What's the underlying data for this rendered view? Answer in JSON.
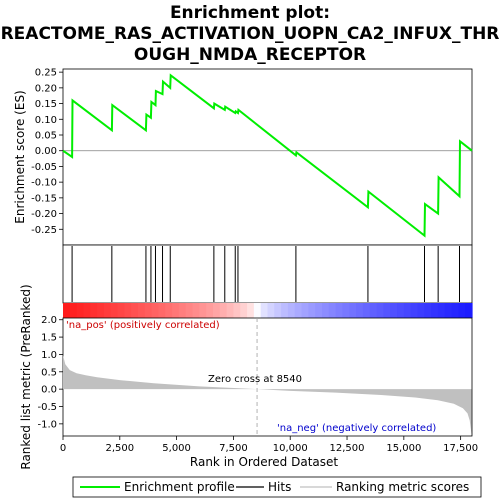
{
  "chart_data": {
    "type": "line",
    "title_lines": [
      "Enrichment plot:",
      "REACTOME_RAS_ACTIVATION_UOPN_CA2_INFUX_THR",
      "OUGH_NMDA_RECEPTOR"
    ],
    "top_panel": {
      "ylabel": "Enrichment score (ES)",
      "ylim": [
        -0.3,
        0.26
      ],
      "yticks": [
        "0.25",
        "0.20",
        "0.15",
        "0.10",
        "0.05",
        "0.00",
        "-0.05",
        "-0.10",
        "-0.15",
        "-0.20",
        "-0.25"
      ],
      "ytick_values": [
        0.25,
        0.2,
        0.15,
        0.1,
        0.05,
        0.0,
        -0.05,
        -0.1,
        -0.15,
        -0.2,
        -0.25
      ],
      "series": [
        {
          "name": "Enrichment profile",
          "color": "#00ee00",
          "x": [
            0,
            400,
            420,
            2150,
            2170,
            3650,
            3670,
            3870,
            3890,
            4070,
            4090,
            4380,
            4400,
            4720,
            4740,
            6640,
            6660,
            7120,
            7140,
            7580,
            7600,
            7700,
            7720,
            10250,
            10270,
            13420,
            13440,
            15910,
            15930,
            16510,
            16530,
            17450,
            17470,
            18000
          ],
          "y": [
            0.0,
            -0.02,
            0.16,
            0.065,
            0.145,
            0.065,
            0.115,
            0.105,
            0.155,
            0.145,
            0.19,
            0.18,
            0.22,
            0.2,
            0.24,
            0.135,
            0.15,
            0.13,
            0.14,
            0.12,
            0.125,
            0.12,
            0.13,
            -0.015,
            -0.005,
            -0.18,
            -0.13,
            -0.27,
            -0.17,
            -0.2,
            -0.085,
            -0.145,
            0.03,
            0.0
          ]
        }
      ]
    },
    "hits": {
      "name": "Hits",
      "positions": [
        400,
        2150,
        3650,
        3870,
        4070,
        4380,
        4720,
        6640,
        7120,
        7580,
        7700,
        10250,
        13420,
        15910,
        16510,
        17450
      ]
    },
    "ranked_panel": {
      "ylabel": "Ranked list metric (PreRanked)",
      "ylim": [
        -1.35,
        2.05
      ],
      "yticks": [
        "2.0",
        "1.5",
        "1.0",
        "0.5",
        "0.0",
        "-0.5",
        "-1.0"
      ],
      "ytick_values": [
        2.0,
        1.5,
        1.0,
        0.5,
        0.0,
        -0.5,
        -1.0
      ],
      "series_name": "Ranking metric scores",
      "color": "#c0c0c0",
      "x": [
        0,
        100,
        300,
        600,
        1000,
        1500,
        2500,
        4000,
        6000,
        8540,
        10000,
        12000,
        14000,
        15500,
        16500,
        17200,
        17600,
        17800,
        17900,
        17980
      ],
      "y": [
        0.98,
        0.72,
        0.55,
        0.46,
        0.4,
        0.34,
        0.26,
        0.17,
        0.08,
        0.0,
        -0.05,
        -0.1,
        -0.17,
        -0.24,
        -0.32,
        -0.42,
        -0.55,
        -0.7,
        -0.9,
        -1.3
      ]
    },
    "xlabel": "Rank in Ordered Dataset",
    "xlim": [
      0,
      18000
    ],
    "xticks": [
      "0",
      "2,500",
      "5,000",
      "7,500",
      "10,000",
      "12,500",
      "15,000",
      "17,500"
    ],
    "xtick_values": [
      0,
      2500,
      5000,
      7500,
      10000,
      12500,
      15000,
      17500
    ],
    "zero_cross_label": "Zero cross at 8540",
    "zero_cross": 8540,
    "pos_label": "'na_pos' (positively correlated)",
    "neg_label": "'na_neg' (negatively correlated)",
    "colors": {
      "positive": "#ff0000",
      "negative": "#0000ff",
      "profile": "#00ee00",
      "hits": "#000000",
      "metric": "#c0c0c0"
    },
    "legend": [
      {
        "label": "Enrichment profile",
        "color": "#00ee00"
      },
      {
        "label": "Hits",
        "color": "#000000"
      },
      {
        "label": "Ranking metric scores",
        "color": "#c0c0c0"
      }
    ],
    "legend_placement": "bottom"
  }
}
